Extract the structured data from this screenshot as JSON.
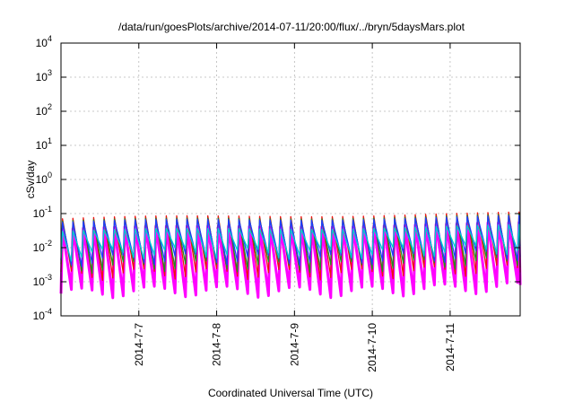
{
  "chart_data": {
    "type": "line",
    "title": "/data/run/goesPlots/archive/2014-07-11/20:00/flux/../bryn/5daysMars.plot",
    "xlabel": "Coordinated Universal Time (UTC)",
    "ylabel": "cSv/day",
    "yscale": "log",
    "ylim": [
      0.0001,
      10000
    ],
    "xlim": [
      0,
      5.9
    ],
    "grid": true,
    "y_ticks": [
      {
        "value": 0.0001,
        "base": "10",
        "exp": "-4"
      },
      {
        "value": 0.001,
        "base": "10",
        "exp": "-3"
      },
      {
        "value": 0.01,
        "base": "10",
        "exp": "-2"
      },
      {
        "value": 0.1,
        "base": "10",
        "exp": "-1"
      },
      {
        "value": 1,
        "base": "10",
        "exp": "0"
      },
      {
        "value": 10,
        "base": "10",
        "exp": "1"
      },
      {
        "value": 100,
        "base": "10",
        "exp": "2"
      },
      {
        "value": 1000,
        "base": "10",
        "exp": "3"
      },
      {
        "value": 10000,
        "base": "10",
        "exp": "4"
      }
    ],
    "x_ticks": [
      {
        "value": 1,
        "label": "2014-7-7"
      },
      {
        "value": 2,
        "label": "2014-7-8"
      },
      {
        "value": 3,
        "label": "2014-7-9"
      },
      {
        "value": 4,
        "label": "2014-7-10"
      },
      {
        "value": 5,
        "label": "2014-7-11"
      }
    ],
    "period_days": 0.1333,
    "series": [
      {
        "color": "#ff00ff",
        "peak": 0.035,
        "trough": 0.00045
      },
      {
        "color": "#ee1111",
        "peak": 0.07,
        "trough": 0.0015
      },
      {
        "color": "#228b22",
        "peak": 0.06,
        "trough": 0.0025
      },
      {
        "color": "#1e3cff",
        "peak": 0.055,
        "trough": 0.004
      },
      {
        "color": "#00ced1",
        "peak": 0.03,
        "trough": 0.006
      }
    ]
  }
}
